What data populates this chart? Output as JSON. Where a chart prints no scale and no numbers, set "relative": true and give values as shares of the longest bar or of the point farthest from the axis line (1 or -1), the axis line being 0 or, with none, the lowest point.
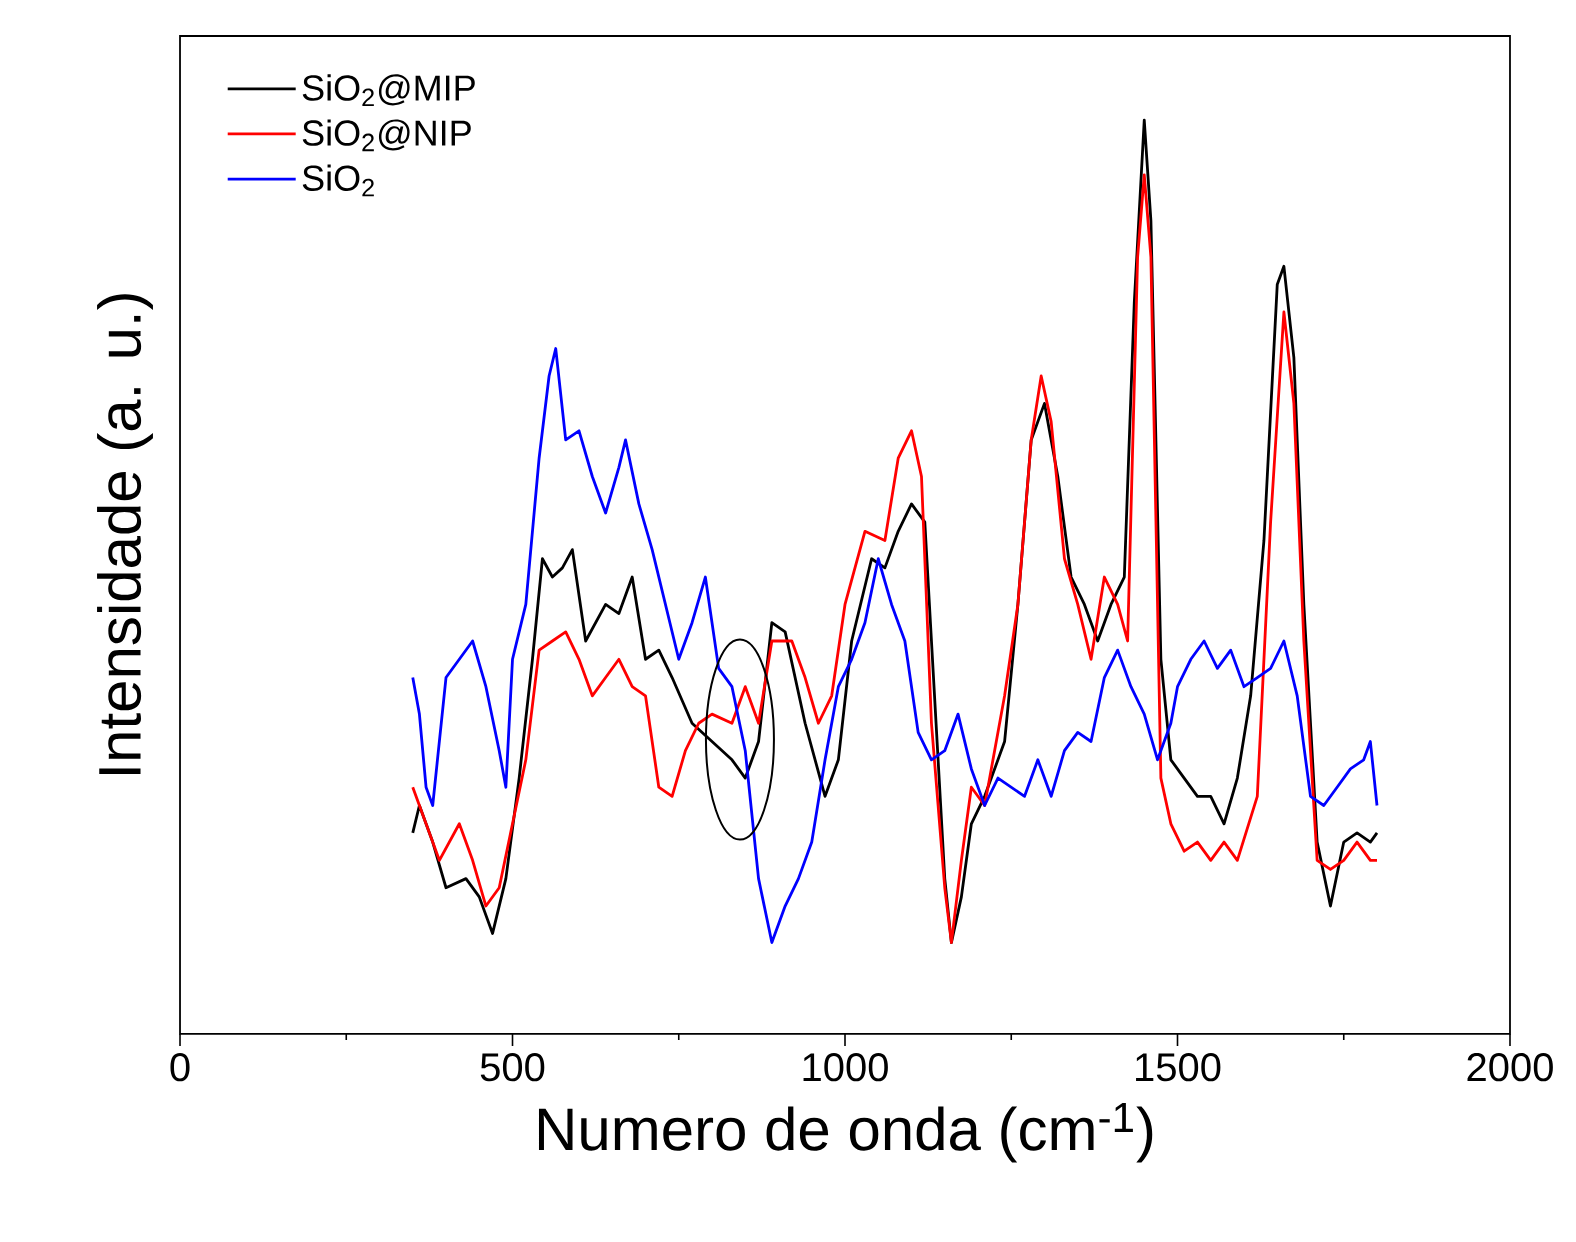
{
  "chart_data": {
    "type": "line",
    "xlabel": "Numero de onda (cm$^{-1}$)",
    "ylabel": "Intensidade (a. u.)",
    "relative": true,
    "legend": "top left",
    "xlim": [
      0,
      2000
    ],
    "xticks": [
      0,
      500,
      1000,
      1500,
      2000
    ],
    "series": [
      {
        "name": "SiO$_{2}$@MIP",
        "color": "#000000",
        "x": [
          350,
          360,
          380,
          400,
          430,
          450,
          470,
          490,
          510,
          530,
          545,
          560,
          575,
          590,
          610,
          640,
          660,
          680,
          700,
          720,
          740,
          770,
          800,
          830,
          850,
          870,
          890,
          910,
          940,
          970,
          990,
          1010,
          1040,
          1060,
          1080,
          1100,
          1120,
          1140,
          1150,
          1160,
          1175,
          1190,
          1210,
          1240,
          1260,
          1280,
          1300,
          1320,
          1340,
          1360,
          1380,
          1400,
          1420,
          1435,
          1450,
          1460,
          1475,
          1490,
          1510,
          1530,
          1550,
          1570,
          1590,
          1610,
          1630,
          1650,
          1660,
          1675,
          1690,
          1710,
          1730,
          1750,
          1770,
          1790,
          1800
        ],
        "values": [
          0.22,
          0.25,
          0.21,
          0.16,
          0.17,
          0.15,
          0.11,
          0.17,
          0.28,
          0.41,
          0.52,
          0.5,
          0.51,
          0.53,
          0.43,
          0.47,
          0.46,
          0.5,
          0.41,
          0.42,
          0.39,
          0.34,
          0.32,
          0.3,
          0.28,
          0.32,
          0.45,
          0.44,
          0.34,
          0.26,
          0.3,
          0.43,
          0.52,
          0.51,
          0.55,
          0.58,
          0.56,
          0.3,
          0.17,
          0.1,
          0.15,
          0.23,
          0.26,
          0.32,
          0.47,
          0.65,
          0.69,
          0.61,
          0.5,
          0.47,
          0.43,
          0.47,
          0.5,
          0.8,
          1.0,
          0.89,
          0.41,
          0.3,
          0.28,
          0.26,
          0.26,
          0.23,
          0.28,
          0.37,
          0.54,
          0.82,
          0.84,
          0.74,
          0.47,
          0.21,
          0.14,
          0.21,
          0.22,
          0.21,
          0.22
        ]
      },
      {
        "name": "SiO$_{2}$@NIP",
        "color": "#ff0000",
        "x": [
          350,
          370,
          390,
          420,
          440,
          460,
          480,
          500,
          520,
          540,
          560,
          580,
          600,
          620,
          640,
          660,
          680,
          700,
          720,
          740,
          760,
          780,
          800,
          830,
          850,
          870,
          890,
          920,
          940,
          960,
          980,
          1000,
          1030,
          1060,
          1080,
          1100,
          1115,
          1130,
          1150,
          1160,
          1175,
          1190,
          1210,
          1240,
          1260,
          1280,
          1295,
          1310,
          1330,
          1350,
          1370,
          1390,
          1410,
          1425,
          1440,
          1450,
          1460,
          1475,
          1490,
          1510,
          1530,
          1550,
          1570,
          1590,
          1620,
          1640,
          1660,
          1675,
          1690,
          1710,
          1730,
          1750,
          1770,
          1790,
          1800
        ],
        "values": [
          0.27,
          0.23,
          0.19,
          0.23,
          0.19,
          0.14,
          0.16,
          0.23,
          0.3,
          0.42,
          0.43,
          0.44,
          0.41,
          0.37,
          0.39,
          0.41,
          0.38,
          0.37,
          0.27,
          0.26,
          0.31,
          0.34,
          0.35,
          0.34,
          0.38,
          0.34,
          0.43,
          0.43,
          0.39,
          0.34,
          0.37,
          0.47,
          0.55,
          0.54,
          0.63,
          0.66,
          0.61,
          0.34,
          0.16,
          0.1,
          0.19,
          0.27,
          0.25,
          0.37,
          0.47,
          0.65,
          0.72,
          0.67,
          0.52,
          0.47,
          0.41,
          0.5,
          0.47,
          0.43,
          0.85,
          0.94,
          0.85,
          0.28,
          0.23,
          0.2,
          0.21,
          0.19,
          0.21,
          0.19,
          0.26,
          0.56,
          0.79,
          0.69,
          0.43,
          0.19,
          0.18,
          0.19,
          0.21,
          0.19,
          0.19
        ]
      },
      {
        "name": "SiO$_{2}$",
        "color": "#0000ff",
        "x": [
          350,
          360,
          370,
          380,
          400,
          420,
          440,
          460,
          480,
          490,
          500,
          520,
          540,
          555,
          565,
          580,
          600,
          620,
          640,
          660,
          670,
          690,
          710,
          730,
          750,
          770,
          790,
          810,
          830,
          850,
          870,
          890,
          910,
          930,
          950,
          970,
          990,
          1010,
          1030,
          1050,
          1070,
          1090,
          1110,
          1130,
          1150,
          1170,
          1190,
          1210,
          1230,
          1250,
          1270,
          1290,
          1310,
          1330,
          1350,
          1370,
          1390,
          1410,
          1430,
          1450,
          1470,
          1490,
          1500,
          1520,
          1540,
          1560,
          1580,
          1600,
          1620,
          1640,
          1660,
          1680,
          1700,
          1720,
          1740,
          1760,
          1780,
          1790,
          1800
        ],
        "values": [
          0.39,
          0.35,
          0.27,
          0.25,
          0.39,
          0.41,
          0.43,
          0.38,
          0.31,
          0.27,
          0.41,
          0.47,
          0.63,
          0.72,
          0.75,
          0.65,
          0.66,
          0.61,
          0.57,
          0.62,
          0.65,
          0.58,
          0.53,
          0.47,
          0.41,
          0.45,
          0.5,
          0.4,
          0.38,
          0.31,
          0.17,
          0.1,
          0.14,
          0.17,
          0.21,
          0.3,
          0.38,
          0.41,
          0.45,
          0.52,
          0.47,
          0.43,
          0.33,
          0.3,
          0.31,
          0.35,
          0.29,
          0.25,
          0.28,
          0.27,
          0.26,
          0.3,
          0.26,
          0.31,
          0.33,
          0.32,
          0.39,
          0.42,
          0.38,
          0.35,
          0.3,
          0.34,
          0.38,
          0.41,
          0.43,
          0.4,
          0.42,
          0.38,
          0.39,
          0.4,
          0.43,
          0.37,
          0.26,
          0.25,
          0.27,
          0.29,
          0.3,
          0.32,
          0.25
        ]
      }
    ]
  }
}
